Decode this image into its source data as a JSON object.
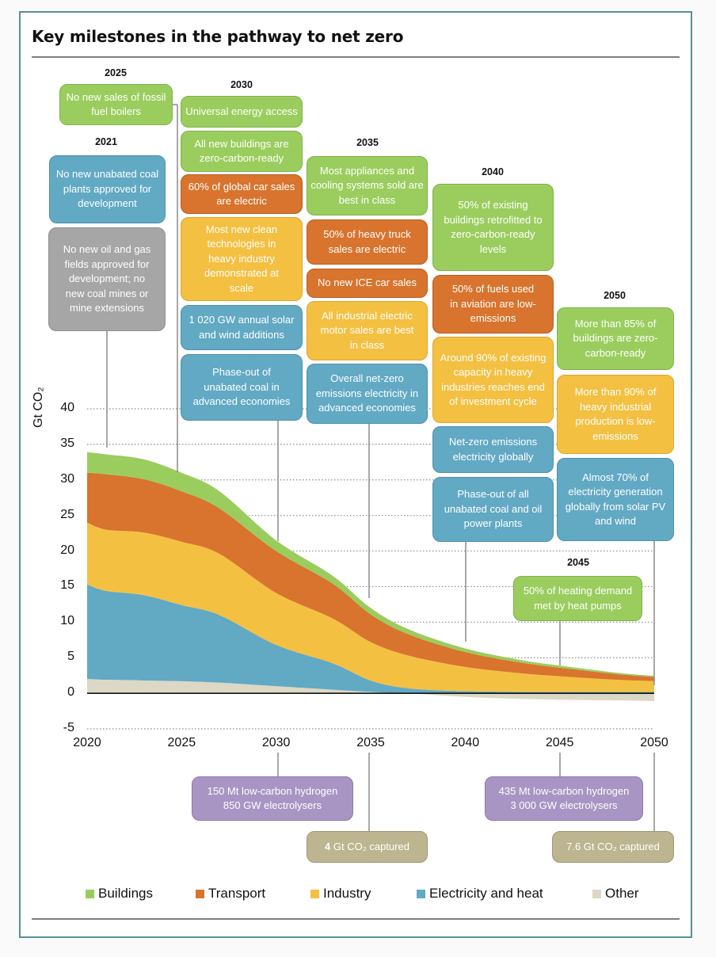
{
  "title": "Key milestones in the pathway to net zero",
  "colors": {
    "buildings": "#9acd5e",
    "transport": "#d8742e",
    "industry": "#f4c042",
    "electricity": "#62a9c4",
    "other": "#dcd8c5",
    "frame": "#5b8f99"
  },
  "milestones": {
    "y2021": {
      "year": "2021",
      "items": [
        "No new unabated coal plants approved for development",
        "No new oil and gas fields approved for development; no new coal mines or mine extensions"
      ]
    },
    "y2025": {
      "year": "2025",
      "items": [
        "No new sales of fossil fuel boilers"
      ]
    },
    "y2030": {
      "year": "2030",
      "items": [
        "Universal energy access",
        "All new buildings are zero-carbon-ready",
        "60% of global car sales are electric",
        "Most new clean technologies in heavy industry demonstrated at scale",
        "1 020 GW annual solar and wind additions",
        "Phase-out of unabated coal in advanced economies"
      ],
      "below": "150 Mt low-carbon hydrogen 850 GW electrolysers"
    },
    "y2035": {
      "year": "2035",
      "items": [
        "Most appliances and cooling systems sold are best in class",
        "50% of heavy truck sales are electric",
        "No new ICE car sales",
        "All industrial electric motor sales are best in class",
        "Overall net-zero emissions electricity in advanced economies"
      ],
      "below_bold": "4",
      "below": " Gt CO₂ captured"
    },
    "y2040": {
      "year": "2040",
      "items": [
        "50% of existing buildings retrofitted to zero-carbon-ready levels",
        "50% of fuels used in aviation are low-emissions",
        "Around 90% of existing capacity in heavy industries reaches end of investment cycle",
        "Net-zero emissions electricity globally",
        "Phase-out of all unabated coal and oil power plants"
      ]
    },
    "y2045": {
      "year": "2045",
      "items": [
        "50% of heating demand met by heat pumps"
      ],
      "below": "435 Mt low-carbon hydrogen 3 000 GW electrolysers"
    },
    "y2050": {
      "year": "2050",
      "items": [
        "More than 85% of buildings are zero-carbon-ready",
        "More than 90% of heavy industrial production is low-emissions",
        "Almost 70% of electricity generation globally from solar PV and wind"
      ],
      "below": "7.6 Gt CO₂ captured"
    }
  },
  "chart_data": {
    "type": "area",
    "title": "Key milestones in the pathway to net zero",
    "xlabel": "",
    "ylabel": "Gt CO₂",
    "ylim": [
      -5,
      40
    ],
    "xlim": [
      2020,
      2050
    ],
    "yticks": [
      "40",
      "35",
      "30",
      "25",
      "20",
      "15",
      "10",
      "5",
      "0",
      "-5"
    ],
    "xticks": [
      "2020",
      "2025",
      "2030",
      "2035",
      "2040",
      "2045",
      "2050"
    ],
    "grid": "dotted horizontal",
    "legend_position": "bottom",
    "x": [
      2020,
      2021,
      2023,
      2025,
      2027,
      2030,
      2033,
      2035,
      2037,
      2040,
      2043,
      2045,
      2048,
      2050
    ],
    "series": [
      {
        "name": "Other",
        "values": [
          2.0,
          1.9,
          1.8,
          1.7,
          1.5,
          1.0,
          0.5,
          0.2,
          0.0,
          -0.5,
          -0.8,
          -0.9,
          -1.0,
          -1.1
        ]
      },
      {
        "name": "Electricity and heat",
        "values": [
          13.3,
          12.5,
          12.0,
          10.7,
          9.5,
          5.8,
          3.7,
          1.6,
          0.7,
          0.3,
          0.2,
          0.2,
          0.2,
          0.2
        ]
      },
      {
        "name": "Industry",
        "values": [
          8.7,
          8.6,
          8.8,
          8.9,
          8.6,
          7.3,
          6.3,
          5.4,
          4.6,
          3.4,
          2.6,
          2.2,
          1.7,
          1.5
        ]
      },
      {
        "name": "Transport",
        "values": [
          7.0,
          7.8,
          7.5,
          7.1,
          6.4,
          5.9,
          4.9,
          3.9,
          3.0,
          2.1,
          1.5,
          1.2,
          0.8,
          0.6
        ]
      },
      {
        "name": "Buildings",
        "values": [
          2.9,
          2.8,
          2.8,
          2.6,
          2.4,
          1.5,
          1.1,
          0.9,
          0.7,
          0.5,
          0.35,
          0.3,
          0.2,
          0.15
        ]
      }
    ],
    "legend": [
      "Buildings",
      "Transport",
      "Industry",
      "Electricity and heat",
      "Other"
    ]
  }
}
